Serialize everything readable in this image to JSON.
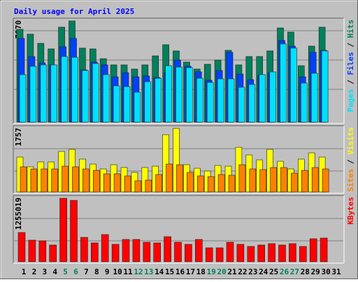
{
  "chart_data": [
    {
      "type": "bar",
      "title": "Daily usage for April 2025",
      "categories": [
        "1",
        "2",
        "3",
        "4",
        "5",
        "6",
        "7",
        "8",
        "9",
        "10",
        "11",
        "12",
        "13",
        "14",
        "15",
        "16",
        "17",
        "18",
        "19",
        "20",
        "21",
        "22",
        "23",
        "24",
        "25",
        "26",
        "27",
        "28",
        "29",
        "30",
        "31"
      ],
      "category_colors": [
        "#000000",
        "#000000",
        "#000000",
        "#000000",
        "#00805C",
        "#00805C",
        "#000000",
        "#000000",
        "#000000",
        "#000000",
        "#000000",
        "#00805C",
        "#00805C",
        "#000000",
        "#000000",
        "#000000",
        "#000000",
        "#000000",
        "#00805C",
        "#00805C",
        "#000000",
        "#000000",
        "#000000",
        "#000000",
        "#000000",
        "#00805C",
        "#00805C",
        "#000000",
        "#000000",
        "#000000",
        "#000000"
      ],
      "ylim": [
        0,
        7970
      ],
      "yticks": [
        7970
      ],
      "series": [
        {
          "name": "Hits",
          "color": "#00805C",
          "values": [
            7310,
            6930,
            6210,
            5770,
            7480,
            7970,
            5830,
            5770,
            5000,
            4510,
            4510,
            4180,
            4510,
            5220,
            6100,
            5610,
            4730,
            4180,
            4560,
            4890,
            5660,
            4510,
            5170,
            5170,
            5610,
            7420,
            7090,
            4450,
            5990,
            7480,
            null
          ]
        },
        {
          "name": "Files",
          "color": "#0040FF",
          "values": [
            6600,
            5170,
            4670,
            4510,
            5940,
            6600,
            4120,
            4730,
            4510,
            3570,
            3900,
            3570,
            3630,
            3520,
            3900,
            4890,
            4400,
            3960,
            3300,
            4070,
            5500,
            3790,
            3350,
            3680,
            3900,
            6430,
            5990,
            3570,
            5500,
            5660,
            null
          ]
        },
        {
          "name": "Pages",
          "color": "#00E0FF",
          "values": [
            3740,
            4400,
            4510,
            4510,
            5170,
            5110,
            4070,
            4620,
            3740,
            2860,
            2800,
            2360,
            3190,
            3460,
            4450,
            4340,
            4290,
            3460,
            3130,
            3410,
            3410,
            2750,
            2970,
            3740,
            3960,
            6160,
            5830,
            3080,
            3850,
            5610,
            null
          ]
        }
      ]
    },
    {
      "type": "bar",
      "ylim": [
        0,
        1757
      ],
      "yticks": [
        1757
      ],
      "series": [
        {
          "name": "Visits",
          "color": "#FFFF00",
          "values": [
            965,
            695,
            830,
            830,
            1120,
            1177,
            907,
            772,
            637,
            753,
            676,
            540,
            676,
            714,
            1583,
            1757,
            753,
            656,
            579,
            733,
            714,
            1235,
            1023,
            888,
            1177,
            849,
            637,
            907,
            1081,
            965,
            null
          ]
        },
        {
          "name": "Sites",
          "color": "#FF8000",
          "values": [
            695,
            637,
            637,
            637,
            714,
            695,
            637,
            598,
            502,
            502,
            444,
            309,
            328,
            483,
            772,
            753,
            540,
            444,
            425,
            483,
            463,
            753,
            637,
            618,
            676,
            676,
            521,
            598,
            676,
            637,
            null
          ]
        }
      ]
    },
    {
      "type": "bar",
      "ylim": [
        0,
        1255019
      ],
      "yticks": [
        1255019
      ],
      "series": [
        {
          "name": "KBytes",
          "color": "#FF0000",
          "values": [
            579000,
            427500,
            413700,
            331000,
            1255019,
            1213600,
            482700,
            372400,
            537800,
            344800,
            441300,
            441300,
            386100,
            372400,
            496500,
            386100,
            344800,
            441300,
            275800,
            275800,
            386100,
            344800,
            303400,
            331000,
            358600,
            331000,
            358600,
            303400,
            455100,
            468900,
            null
          ]
        }
      ]
    }
  ]
}
